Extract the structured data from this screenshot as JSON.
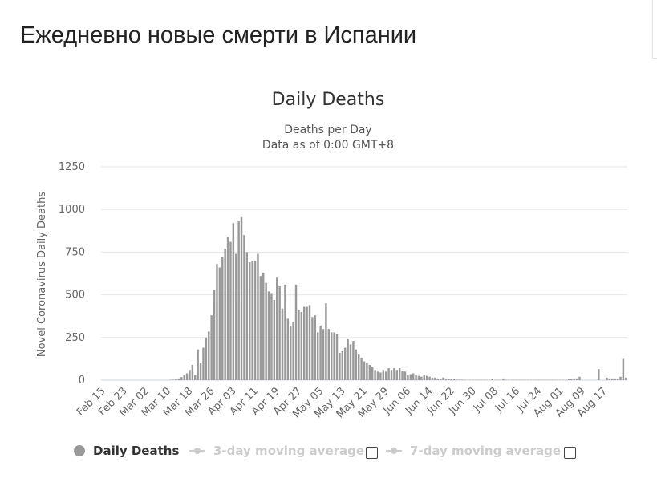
{
  "page": {
    "title": "Ежедневно новые смерти в Испании"
  },
  "chart_data": {
    "type": "bar",
    "title": "Daily Deaths",
    "subtitle_lines": [
      "Deaths per Day",
      "Data as of 0:00 GMT+8"
    ],
    "xlabel": "",
    "ylabel": "Novel Coronavirus Daily Deaths",
    "ylim": [
      0,
      1250
    ],
    "yticks": [
      0,
      250,
      500,
      750,
      1000,
      1250
    ],
    "grid": true,
    "legend_position": "bottom",
    "bar_color": "#999999",
    "x_tick_labels": [
      "Feb 15",
      "Feb 23",
      "Mar 02",
      "Mar 10",
      "Mar 18",
      "Mar 26",
      "Apr 03",
      "Apr 11",
      "Apr 19",
      "Apr 27",
      "May 05",
      "May 13",
      "May 21",
      "May 29",
      "Jun 06",
      "Jun 14",
      "Jun 22",
      "Jun 30",
      "Jul 08",
      "Jul 16",
      "Jul 24",
      "Aug 01",
      "Aug 09",
      "Aug 17"
    ],
    "x_start": "Feb 15",
    "x_end": "Aug 20",
    "series": [
      {
        "name": "Daily Deaths",
        "values": [
          0,
          0,
          0,
          0,
          0,
          0,
          0,
          0,
          0,
          0,
          0,
          0,
          0,
          0,
          0,
          0,
          0,
          0,
          0,
          0,
          0,
          0,
          0,
          0,
          0,
          2,
          3,
          8,
          10,
          18,
          28,
          40,
          60,
          90,
          30,
          180,
          100,
          190,
          250,
          285,
          380,
          530,
          680,
          660,
          720,
          770,
          840,
          810,
          920,
          740,
          930,
          960,
          850,
          750,
          690,
          700,
          700,
          740,
          610,
          630,
          570,
          520,
          510,
          470,
          600,
          550,
          420,
          560,
          360,
          320,
          340,
          560,
          410,
          400,
          430,
          430,
          440,
          370,
          380,
          280,
          320,
          300,
          450,
          300,
          280,
          280,
          270,
          160,
          170,
          190,
          240,
          210,
          230,
          180,
          150,
          130,
          110,
          100,
          90,
          80,
          60,
          50,
          45,
          60,
          50,
          70,
          60,
          70,
          60,
          70,
          55,
          50,
          30,
          35,
          40,
          30,
          25,
          20,
          30,
          25,
          20,
          15,
          15,
          10,
          10,
          15,
          10,
          5,
          5,
          5,
          3,
          3,
          3,
          2,
          2,
          2,
          2,
          2,
          2,
          2,
          2,
          2,
          2,
          5,
          2,
          2,
          2,
          10,
          2,
          2,
          2,
          2,
          2,
          2,
          2,
          2,
          2,
          2,
          2,
          2,
          2,
          2,
          2,
          2,
          2,
          2,
          2,
          2,
          2,
          2,
          2,
          5,
          5,
          10,
          10,
          20,
          0,
          0,
          0,
          0,
          0,
          0,
          65,
          0,
          0,
          15,
          10,
          10,
          10,
          10,
          20,
          125,
          15
        ]
      }
    ]
  },
  "legend": {
    "items": [
      {
        "label": "Daily Deaths",
        "active": true
      },
      {
        "label": "3-day moving average",
        "active": false
      },
      {
        "label": "7-day moving average",
        "active": false
      }
    ]
  },
  "colors": {
    "bar": "#999999",
    "grid": "#e6e6e6",
    "axis_text": "#666666",
    "legend_inactive": "#cccccc"
  }
}
